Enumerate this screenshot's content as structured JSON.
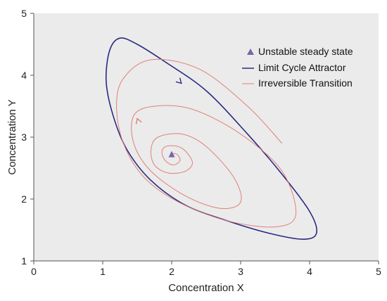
{
  "chart_data": {
    "type": "line",
    "xlabel": "Concentration X",
    "ylabel": "Concentration Y",
    "xlim": [
      0,
      5
    ],
    "ylim": [
      1,
      5
    ],
    "xticks": [
      "0",
      "1",
      "2",
      "3",
      "4",
      "5"
    ],
    "yticks": [
      "1",
      "2",
      "3",
      "4",
      "5"
    ],
    "grid": false,
    "legend_position": "top-right",
    "colors": {
      "plot_background": "#ebebeb",
      "limit_cycle": "#2a2a80",
      "transition": "#e0807a",
      "steady_state": "#7b64a8"
    },
    "legend": [
      {
        "label": "Unstable steady state",
        "marker": "triangle"
      },
      {
        "label": "Limit Cycle Attractor",
        "marker": "line-dark"
      },
      {
        "label": "Irreversible Transition",
        "marker": "line-light"
      }
    ],
    "steady_state": {
      "x": 2.0,
      "y": 2.72
    },
    "series": [
      {
        "name": "Limit Cycle Attractor",
        "closed": true,
        "x": [
          1.9,
          2.5,
          3.1,
          3.6,
          4.0,
          4.1,
          3.9,
          3.4,
          2.8,
          2.2,
          1.7,
          1.35,
          1.15,
          1.05,
          1.1,
          1.25,
          1.5
        ],
        "y": [
          4.22,
          3.75,
          3.05,
          2.4,
          1.8,
          1.45,
          1.35,
          1.45,
          1.65,
          1.9,
          2.3,
          2.8,
          3.35,
          3.9,
          4.4,
          4.6,
          4.5
        ]
      },
      {
        "name": "Irreversible Transition",
        "closed": false,
        "x": [
          1.98,
          2.08,
          2.12,
          2.02,
          1.9,
          1.86,
          1.95,
          2.15,
          2.3,
          2.2,
          1.95,
          1.75,
          1.7,
          1.8,
          2.15,
          2.5,
          2.9,
          3.0,
          2.7,
          2.2,
          1.7,
          1.45,
          1.45,
          1.75,
          2.3,
          3.0,
          3.6,
          3.8,
          3.5,
          2.8,
          2.1,
          1.6,
          1.3,
          1.2,
          1.3,
          1.7,
          2.4,
          3.1,
          3.6
        ],
        "y": [
          2.74,
          2.72,
          2.62,
          2.55,
          2.63,
          2.78,
          2.86,
          2.82,
          2.6,
          2.45,
          2.42,
          2.55,
          2.8,
          3.0,
          3.05,
          2.85,
          2.35,
          1.95,
          1.85,
          2.05,
          2.45,
          2.9,
          3.35,
          3.5,
          3.45,
          3.05,
          2.45,
          1.75,
          1.55,
          1.65,
          1.95,
          2.35,
          2.9,
          3.5,
          3.95,
          4.25,
          4.1,
          3.5,
          2.9
        ]
      }
    ]
  }
}
